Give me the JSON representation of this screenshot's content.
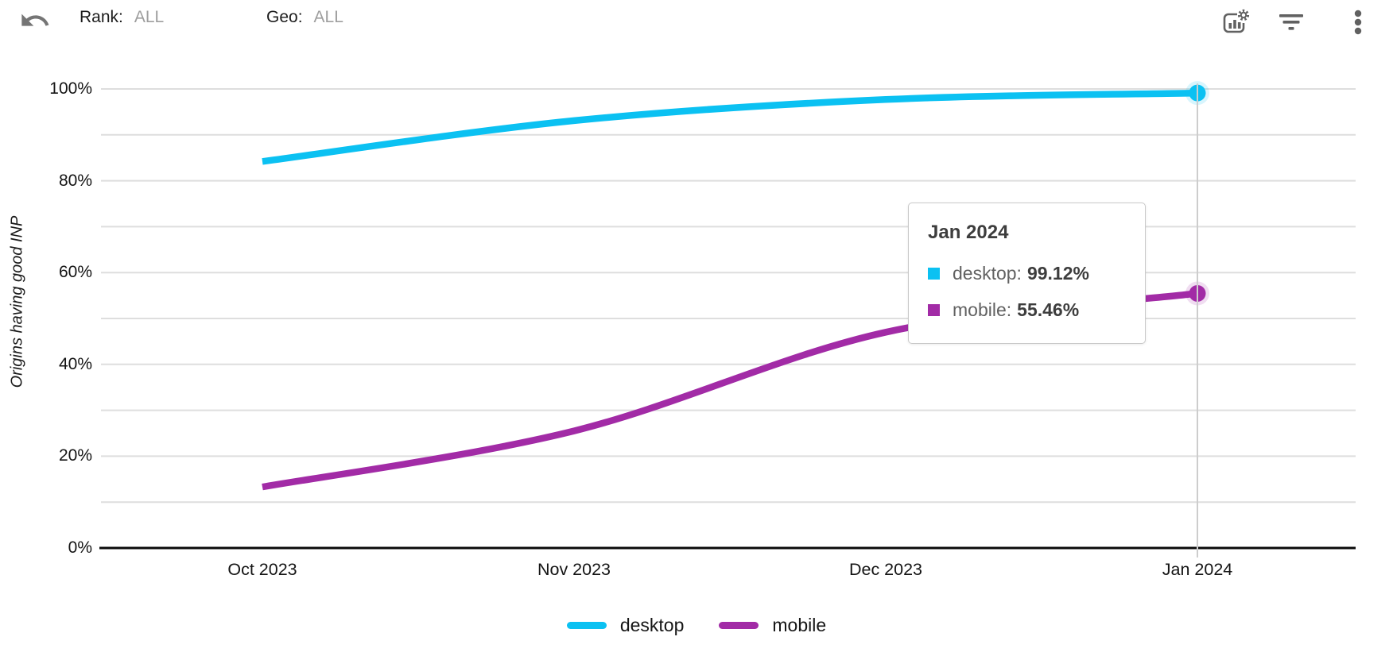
{
  "toolbar": {
    "undo_icon": "undo-icon",
    "rank_label": "Rank:",
    "rank_value": "ALL",
    "geo_label": "Geo:",
    "geo_value": "ALL",
    "right_icons": [
      "chart-settings-icon",
      "filter-icon",
      "more-vert-icon"
    ]
  },
  "chart_data": {
    "type": "line",
    "title": "",
    "ylabel": "Origins having good INP",
    "xlabel": "",
    "x": [
      "Oct 2023",
      "Nov 2023",
      "Dec 2023",
      "Jan 2024"
    ],
    "series": [
      {
        "name": "desktop",
        "color": "#0bc1f2",
        "values": [
          84.2,
          93.1,
          97.7,
          99.12
        ]
      },
      {
        "name": "mobile",
        "color": "#a22ba6",
        "values": [
          13.3,
          25.5,
          47.0,
          55.46
        ]
      }
    ],
    "ylim": [
      0,
      100
    ],
    "yticks_labeled": [
      "100%",
      "80%",
      "60%",
      "40%",
      "20%",
      "0%"
    ],
    "grid": "horizontal lines every 10%",
    "legend_position": "bottom",
    "selected_x": "Jan 2024",
    "selection_line_color": "#cdcdcd",
    "grid_color": "#dedede",
    "axis_color": "#0a0a0a"
  },
  "tooltip": {
    "title": "Jan 2024",
    "rows": [
      {
        "label": "desktop:",
        "value": "99.12%"
      },
      {
        "label": "mobile:",
        "value": "55.46%"
      }
    ]
  }
}
